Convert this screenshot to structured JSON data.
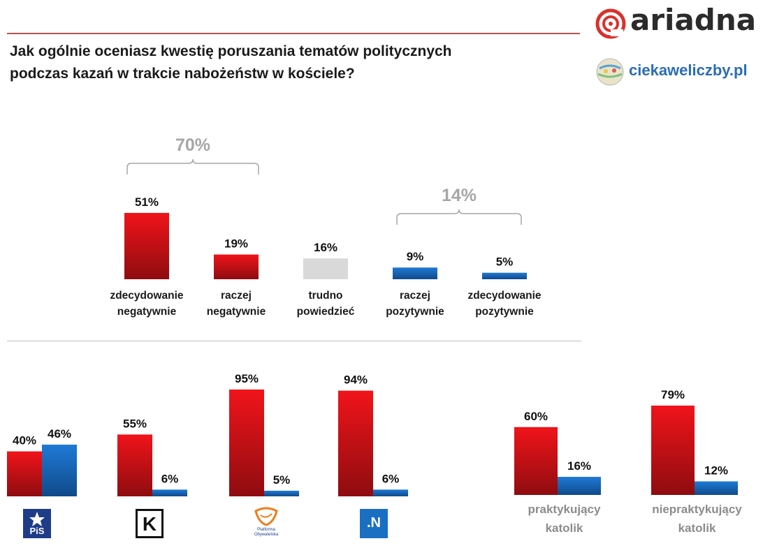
{
  "header": {
    "title_line1": "Jak ogólnie oceniasz kwestię poruszania tematów politycznych",
    "title_line2": "podczas kazań w trakcie nabożeństw w kościele?",
    "logo_ariadna": "ariadna",
    "logo_ciekaweliczby": "ciekaweliczby.pl"
  },
  "colors": {
    "red": "#e8141a",
    "blue": "#1b6fc2",
    "grey": "#d9d9d9",
    "bracket": "#a6a6a6"
  },
  "chart_data": [
    {
      "type": "bar",
      "categories": [
        "zdecydowanie negatywnie",
        "raczej negatywnie",
        "trudno powiedzieć",
        "raczej pozytywnie",
        "zdecydowanie pozytywnie"
      ],
      "category_lines": [
        [
          "zdecydowanie",
          "negatywnie"
        ],
        [
          "raczej",
          "negatywnie"
        ],
        [
          "trudno",
          "powiedzieć"
        ],
        [
          "raczej",
          "pozytywnie"
        ],
        [
          "zdecydowanie",
          "pozytywnie"
        ]
      ],
      "values": [
        51,
        19,
        16,
        9,
        5
      ],
      "value_labels": [
        "51%",
        "19%",
        "16%",
        "9%",
        "5%"
      ],
      "bar_colors": [
        "red",
        "red",
        "grey",
        "blue",
        "blue"
      ],
      "brackets": [
        {
          "label": "70%",
          "span": [
            0,
            1
          ]
        },
        {
          "label": "14%",
          "span": [
            3,
            4
          ]
        }
      ],
      "ylim": [
        0,
        100
      ]
    },
    {
      "type": "bar",
      "groups": [
        "PiS",
        "Kukiz'15",
        "Platforma Obywatelska",
        "Nowoczesna"
      ],
      "series": [
        {
          "color": "red",
          "values": [
            40,
            55,
            95,
            94
          ],
          "labels": [
            "40%",
            "55%",
            "95%",
            "94%"
          ]
        },
        {
          "color": "blue",
          "values": [
            46,
            6,
            5,
            6
          ],
          "labels": [
            "46%",
            "6%",
            "5%",
            "6%"
          ]
        }
      ],
      "group_icons": [
        "pis-logo-icon",
        "kukiz-logo-icon",
        "platforma-obywatelska-logo-icon",
        "nowoczesna-logo-icon"
      ],
      "icon_text": {
        "pis": "PiS",
        "kukiz": "K",
        "po": "Platforma Obywatelska",
        "n": ".N"
      },
      "ylim": [
        0,
        100
      ]
    },
    {
      "type": "bar",
      "groups": [
        "praktykujący katolik",
        "niepraktykujący katolik"
      ],
      "group_lines": [
        [
          "praktykujący",
          "katolik"
        ],
        [
          "niepraktykujący",
          "katolik"
        ]
      ],
      "series": [
        {
          "color": "red",
          "values": [
            60,
            79
          ],
          "labels": [
            "60%",
            "79%"
          ]
        },
        {
          "color": "blue",
          "values": [
            16,
            12
          ],
          "labels": [
            "16%",
            "12%"
          ]
        }
      ],
      "ylim": [
        0,
        100
      ]
    }
  ]
}
